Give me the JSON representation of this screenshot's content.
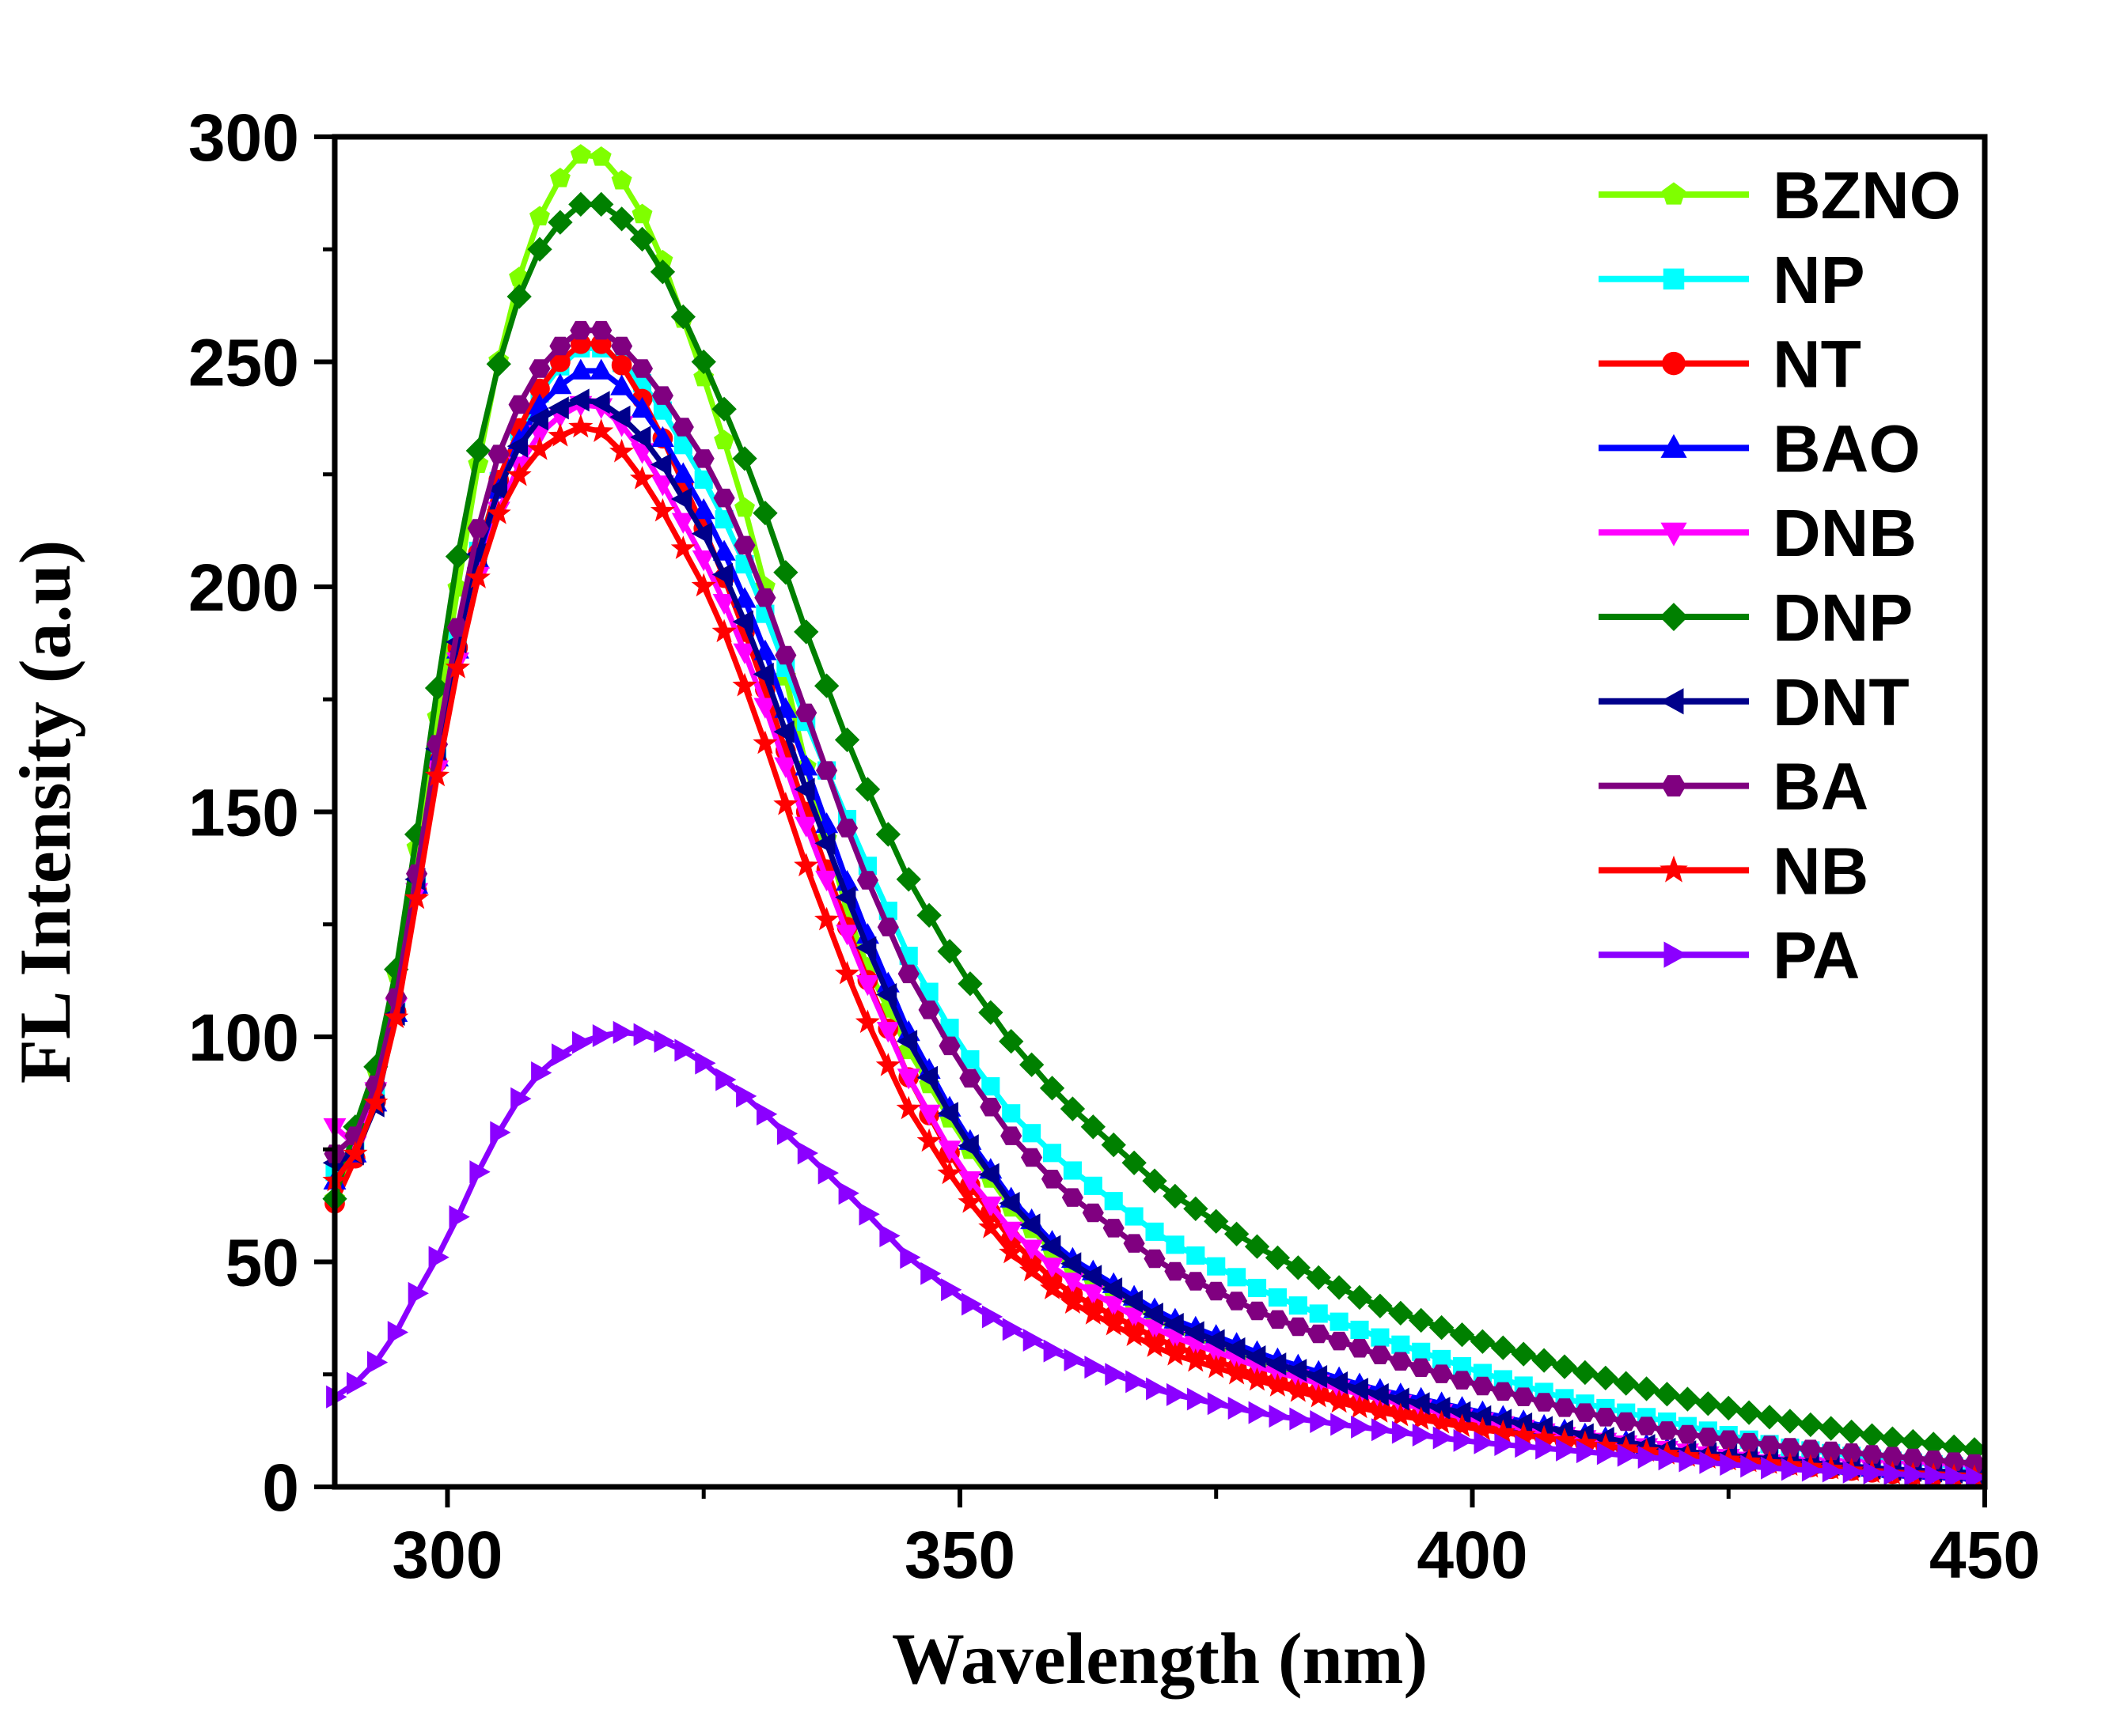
{
  "chart_data": {
    "type": "line",
    "xlabel": "Wavelength (nm)",
    "ylabel": "FL Intensity (a.u)",
    "xlim": [
      289,
      450
    ],
    "ylim": [
      0,
      300
    ],
    "xticks": [
      300,
      350,
      400,
      450
    ],
    "xticks_minor": [
      325,
      375,
      425
    ],
    "yticks": [
      0,
      50,
      100,
      150,
      200,
      250,
      300
    ],
    "yticks_minor": [
      25,
      75,
      125,
      175,
      225,
      275
    ],
    "xtick_labels": [
      "300",
      "350",
      "400",
      "450"
    ],
    "ytick_labels": [
      "0",
      "50",
      "100",
      "150",
      "200",
      "250",
      "300"
    ],
    "grid": false,
    "legend_position": "top-right",
    "x_start": 289,
    "x_step": 2,
    "series": [
      {
        "name": "BZNO",
        "color": "#7FFF00",
        "marker": "pentagon",
        "anchors": [
          [
            289,
            64
          ],
          [
            291,
            78
          ],
          [
            294,
            100
          ],
          [
            298,
            156
          ],
          [
            300,
            186
          ],
          [
            304,
            241
          ],
          [
            308,
            278
          ],
          [
            312,
            295
          ],
          [
            314,
            297
          ],
          [
            316,
            294
          ],
          [
            320,
            279
          ],
          [
            326,
            240
          ],
          [
            330,
            210
          ],
          [
            335,
            160
          ],
          [
            340,
            120
          ],
          [
            345,
            97
          ],
          [
            350,
            78
          ],
          [
            355,
            62
          ],
          [
            360,
            50
          ],
          [
            370,
            36
          ],
          [
            380,
            27
          ],
          [
            390,
            21
          ],
          [
            400,
            16
          ],
          [
            410,
            11
          ],
          [
            420,
            7
          ],
          [
            430,
            5
          ],
          [
            440,
            3
          ],
          [
            450,
            2
          ]
        ]
      },
      {
        "name": "NP",
        "color": "#00FFFF",
        "marker": "square",
        "anchors": [
          [
            289,
            70
          ],
          [
            291,
            76
          ],
          [
            294,
            92
          ],
          [
            298,
            148
          ],
          [
            300,
            178
          ],
          [
            304,
            218
          ],
          [
            308,
            240
          ],
          [
            312,
            252
          ],
          [
            314,
            254
          ],
          [
            316,
            252
          ],
          [
            320,
            243
          ],
          [
            326,
            220
          ],
          [
            330,
            200
          ],
          [
            335,
            170
          ],
          [
            340,
            143
          ],
          [
            345,
            118
          ],
          [
            350,
            98
          ],
          [
            355,
            83
          ],
          [
            360,
            72
          ],
          [
            370,
            55
          ],
          [
            380,
            43
          ],
          [
            390,
            34
          ],
          [
            400,
            26
          ],
          [
            410,
            19
          ],
          [
            420,
            14
          ],
          [
            430,
            9
          ],
          [
            440,
            6
          ],
          [
            450,
            4
          ]
        ]
      },
      {
        "name": "NT",
        "color": "#FF0000",
        "marker": "circle",
        "anchors": [
          [
            289,
            63
          ],
          [
            291,
            73
          ],
          [
            294,
            92
          ],
          [
            298,
            146
          ],
          [
            300,
            176
          ],
          [
            304,
            218
          ],
          [
            308,
            241
          ],
          [
            312,
            253
          ],
          [
            314,
            255
          ],
          [
            316,
            253
          ],
          [
            320,
            238
          ],
          [
            326,
            208
          ],
          [
            330,
            184
          ],
          [
            335,
            150
          ],
          [
            340,
            118
          ],
          [
            345,
            91
          ],
          [
            350,
            70
          ],
          [
            355,
            55
          ],
          [
            360,
            44
          ],
          [
            370,
            32
          ],
          [
            380,
            24
          ],
          [
            390,
            18
          ],
          [
            400,
            14
          ],
          [
            410,
            10
          ],
          [
            420,
            7
          ],
          [
            430,
            5
          ],
          [
            440,
            3
          ],
          [
            450,
            2
          ]
        ]
      },
      {
        "name": "BAO",
        "color": "#0000FF",
        "marker": "triangle-up",
        "anchors": [
          [
            289,
            68
          ],
          [
            291,
            74
          ],
          [
            294,
            91
          ],
          [
            298,
            148
          ],
          [
            300,
            176
          ],
          [
            304,
            216
          ],
          [
            308,
            238
          ],
          [
            312,
            247
          ],
          [
            314,
            249
          ],
          [
            316,
            247
          ],
          [
            320,
            237
          ],
          [
            326,
            213
          ],
          [
            330,
            192
          ],
          [
            335,
            160
          ],
          [
            340,
            128
          ],
          [
            345,
            101
          ],
          [
            350,
            80
          ],
          [
            355,
            64
          ],
          [
            360,
            52
          ],
          [
            370,
            38
          ],
          [
            380,
            29
          ],
          [
            390,
            22
          ],
          [
            400,
            17
          ],
          [
            410,
            12
          ],
          [
            420,
            8
          ],
          [
            430,
            6
          ],
          [
            440,
            4
          ],
          [
            450,
            3
          ]
        ]
      },
      {
        "name": "DNB",
        "color": "#FF00FF",
        "marker": "triangle-down",
        "anchors": [
          [
            289,
            80
          ],
          [
            291,
            76
          ],
          [
            294,
            94
          ],
          [
            298,
            145
          ],
          [
            300,
            174
          ],
          [
            304,
            212
          ],
          [
            308,
            232
          ],
          [
            312,
            240
          ],
          [
            314,
            241
          ],
          [
            316,
            239
          ],
          [
            320,
            227
          ],
          [
            326,
            202
          ],
          [
            330,
            180
          ],
          [
            335,
            147
          ],
          [
            340,
            117
          ],
          [
            345,
            91
          ],
          [
            350,
            71
          ],
          [
            355,
            57
          ],
          [
            360,
            47
          ],
          [
            370,
            34
          ],
          [
            380,
            26
          ],
          [
            390,
            20
          ],
          [
            400,
            15
          ],
          [
            410,
            11
          ],
          [
            420,
            8
          ],
          [
            430,
            5
          ],
          [
            440,
            4
          ],
          [
            450,
            3
          ]
        ]
      },
      {
        "name": "DNP",
        "color": "#008000",
        "marker": "diamond",
        "anchors": [
          [
            289,
            64
          ],
          [
            291,
            80
          ],
          [
            294,
            100
          ],
          [
            298,
            160
          ],
          [
            300,
            195
          ],
          [
            304,
            242
          ],
          [
            308,
            272
          ],
          [
            312,
            284
          ],
          [
            314,
            286
          ],
          [
            316,
            284
          ],
          [
            320,
            275
          ],
          [
            326,
            245
          ],
          [
            330,
            223
          ],
          [
            335,
            190
          ],
          [
            340,
            160
          ],
          [
            345,
            135
          ],
          [
            350,
            115
          ],
          [
            355,
            99
          ],
          [
            360,
            86
          ],
          [
            370,
            66
          ],
          [
            380,
            52
          ],
          [
            390,
            41
          ],
          [
            400,
            33
          ],
          [
            410,
            26
          ],
          [
            420,
            20
          ],
          [
            430,
            15
          ],
          [
            440,
            11
          ],
          [
            450,
            8
          ]
        ]
      },
      {
        "name": "DNT",
        "color": "#00008B",
        "marker": "triangle-left",
        "anchors": [
          [
            289,
            72
          ],
          [
            291,
            74
          ],
          [
            294,
            90
          ],
          [
            298,
            150
          ],
          [
            300,
            178
          ],
          [
            304,
            217
          ],
          [
            308,
            236
          ],
          [
            312,
            241
          ],
          [
            314,
            242
          ],
          [
            316,
            240
          ],
          [
            320,
            231
          ],
          [
            326,
            208
          ],
          [
            330,
            187
          ],
          [
            335,
            155
          ],
          [
            340,
            125
          ],
          [
            345,
            99
          ],
          [
            350,
            79
          ],
          [
            355,
            63
          ],
          [
            360,
            51
          ],
          [
            370,
            37
          ],
          [
            380,
            28
          ],
          [
            390,
            21
          ],
          [
            400,
            16
          ],
          [
            410,
            12
          ],
          [
            420,
            8
          ],
          [
            430,
            6
          ],
          [
            440,
            4
          ],
          [
            450,
            3
          ]
        ]
      },
      {
        "name": "BA",
        "color": "#800080",
        "marker": "hexagon",
        "anchors": [
          [
            289,
            74
          ],
          [
            291,
            78
          ],
          [
            294,
            95
          ],
          [
            298,
            150
          ],
          [
            300,
            180
          ],
          [
            304,
            224
          ],
          [
            308,
            246
          ],
          [
            312,
            256
          ],
          [
            314,
            258
          ],
          [
            316,
            256
          ],
          [
            320,
            246
          ],
          [
            326,
            225
          ],
          [
            330,
            204
          ],
          [
            335,
            172
          ],
          [
            340,
            140
          ],
          [
            345,
            114
          ],
          [
            350,
            94
          ],
          [
            355,
            78
          ],
          [
            360,
            66
          ],
          [
            370,
            49
          ],
          [
            380,
            38
          ],
          [
            390,
            30
          ],
          [
            400,
            23
          ],
          [
            410,
            17
          ],
          [
            420,
            12
          ],
          [
            430,
            9
          ],
          [
            440,
            7
          ],
          [
            450,
            5
          ]
        ]
      },
      {
        "name": "NB",
        "color": "#FF0000",
        "marker": "star",
        "anchors": [
          [
            289,
            68
          ],
          [
            291,
            74
          ],
          [
            294,
            91
          ],
          [
            298,
            144
          ],
          [
            300,
            172
          ],
          [
            304,
            212
          ],
          [
            308,
            229
          ],
          [
            312,
            235
          ],
          [
            314,
            236
          ],
          [
            316,
            233
          ],
          [
            320,
            221
          ],
          [
            326,
            196
          ],
          [
            330,
            172
          ],
          [
            335,
            138
          ],
          [
            340,
            108
          ],
          [
            345,
            84
          ],
          [
            350,
            66
          ],
          [
            355,
            52
          ],
          [
            360,
            42
          ],
          [
            370,
            30
          ],
          [
            380,
            23
          ],
          [
            390,
            17
          ],
          [
            400,
            13
          ],
          [
            410,
            10
          ],
          [
            420,
            7
          ],
          [
            430,
            5
          ],
          [
            440,
            3
          ],
          [
            450,
            2
          ]
        ]
      },
      {
        "name": "PA",
        "color": "#8B00FF",
        "marker": "triangle-right",
        "anchors": [
          [
            289,
            20
          ],
          [
            291,
            23
          ],
          [
            294,
            30
          ],
          [
            297,
            43
          ],
          [
            300,
            55
          ],
          [
            304,
            75
          ],
          [
            308,
            90
          ],
          [
            312,
            98
          ],
          [
            316,
            101
          ],
          [
            318,
            101
          ],
          [
            320,
            100
          ],
          [
            324,
            96
          ],
          [
            330,
            85
          ],
          [
            336,
            72
          ],
          [
            340,
            63
          ],
          [
            345,
            51
          ],
          [
            350,
            42
          ],
          [
            355,
            35
          ],
          [
            360,
            29
          ],
          [
            370,
            21
          ],
          [
            380,
            16
          ],
          [
            390,
            13
          ],
          [
            400,
            10
          ],
          [
            410,
            8
          ],
          [
            420,
            6
          ],
          [
            430,
            4
          ],
          [
            440,
            3
          ],
          [
            450,
            2
          ]
        ]
      }
    ]
  }
}
